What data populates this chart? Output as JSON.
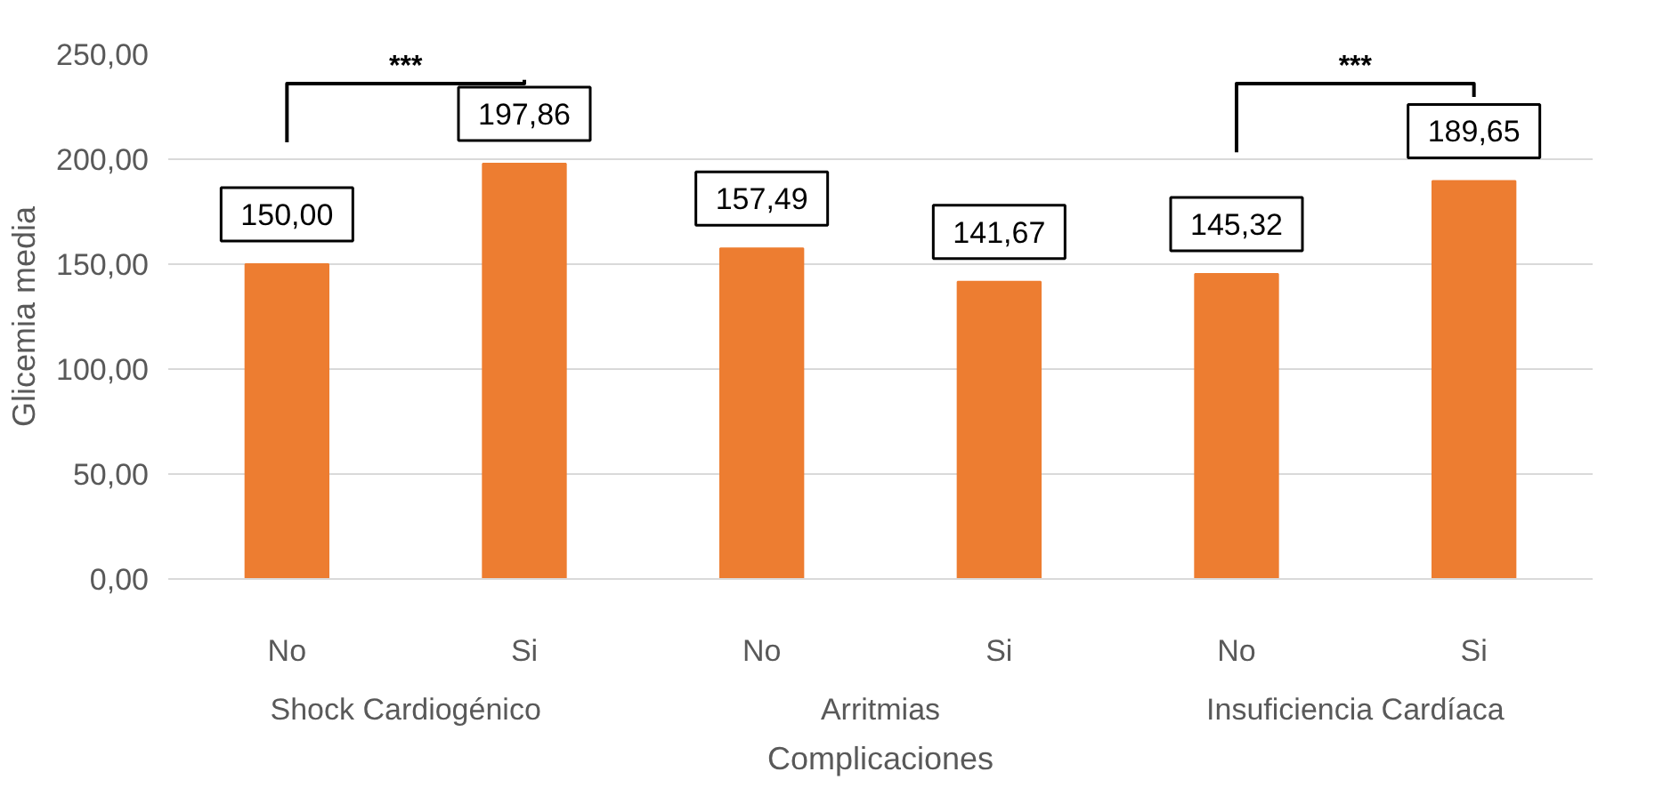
{
  "chart_data": {
    "type": "bar",
    "xlabel": "Complicaciones",
    "ylabel": "Glicemia media",
    "categories": [
      "No",
      "Si",
      "No",
      "Si",
      "No",
      "Si"
    ],
    "series": [
      {
        "color": "#ed7d31",
        "values": [
          150.0,
          197.86,
          157.49,
          141.67,
          145.32,
          189.65
        ],
        "value_labels": [
          "150,00",
          "197,86",
          "157,49",
          "141,67",
          "145,32",
          "189,65"
        ]
      }
    ],
    "ylim": [
      0,
      250
    ],
    "yticks": [
      {
        "value": 0,
        "label": "0,00"
      },
      {
        "value": 50,
        "label": "50,00"
      },
      {
        "value": 100,
        "label": "100,00"
      },
      {
        "value": 150,
        "label": "150,00"
      },
      {
        "value": 200,
        "label": "200,00"
      },
      {
        "value": 250,
        "label": "250,00"
      }
    ],
    "grid": "y",
    "annotations": [
      "Shock Cardiogénico",
      "Arritmias",
      "Insuficiencia Cardíaca",
      "***",
      "***"
    ]
  }
}
